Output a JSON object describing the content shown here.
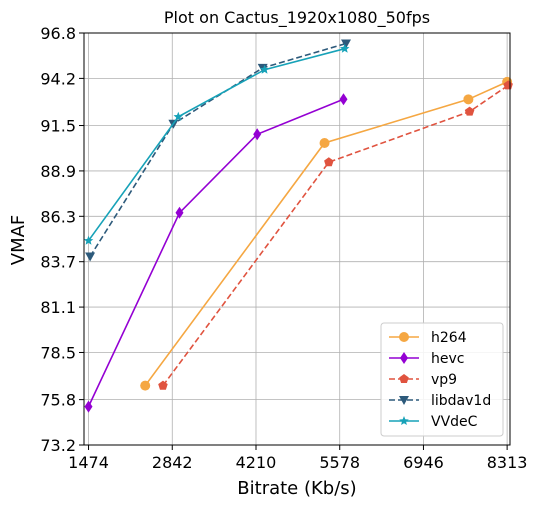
{
  "chart_data": {
    "type": "line",
    "title": "Plot on Cactus_1920x1080_50fps",
    "xlabel": "Bitrate (Kb/s)",
    "ylabel": "VMAF",
    "xlim": [
      1400,
      8360
    ],
    "ylim": [
      73.2,
      96.8
    ],
    "xticks": [
      1474,
      2842,
      4210,
      5578,
      6946,
      8313
    ],
    "yticks": [
      73.2,
      75.8,
      78.5,
      81.1,
      83.7,
      86.3,
      88.9,
      91.5,
      94.2,
      96.8
    ],
    "grid": true,
    "legend_position": "lower-right",
    "series": [
      {
        "name": "h264",
        "color": "#F5A742",
        "linestyle": "solid",
        "marker": "circle",
        "x": [
          2400,
          5330,
          7680,
          8313
        ],
        "y": [
          76.6,
          90.5,
          93.0,
          94.0
        ]
      },
      {
        "name": "hevc",
        "color": "#9400D3",
        "linestyle": "solid",
        "marker": "diamond",
        "x": [
          1474,
          2960,
          4230,
          5640
        ],
        "y": [
          75.4,
          86.5,
          91.0,
          93.0
        ]
      },
      {
        "name": "vp9",
        "color": "#E0533F",
        "linestyle": "dashed",
        "marker": "pentagon",
        "x": [
          2690,
          5400,
          7700,
          8330
        ],
        "y": [
          76.6,
          89.4,
          92.3,
          93.8
        ]
      },
      {
        "name": "libdav1d",
        "color": "#2D5A7B",
        "linestyle": "dashed",
        "marker": "triangle-down",
        "x": [
          1500,
          2860,
          4320,
          5680
        ],
        "y": [
          84.0,
          91.6,
          94.8,
          96.2
        ]
      },
      {
        "name": "VVdeC",
        "color": "#17A2B8",
        "linestyle": "solid",
        "marker": "star",
        "x": [
          1474,
          2940,
          4350,
          5660
        ],
        "y": [
          84.9,
          92.0,
          94.7,
          95.9
        ]
      }
    ]
  }
}
